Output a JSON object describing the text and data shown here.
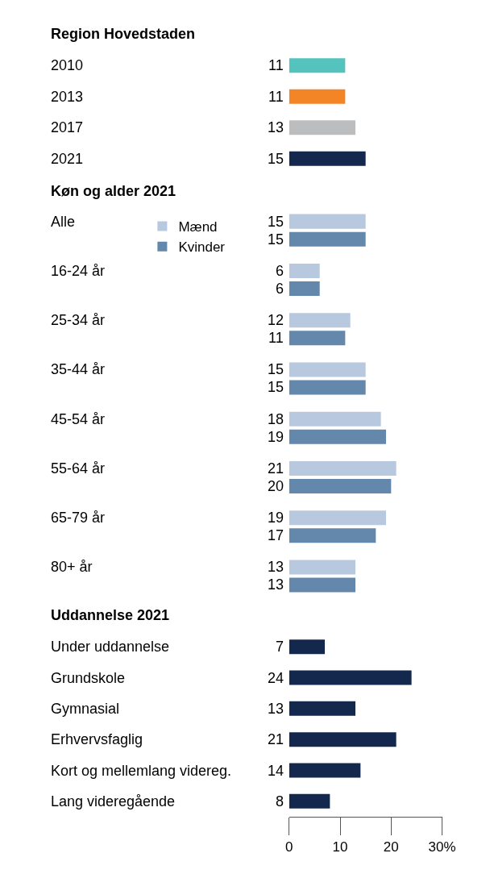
{
  "chart_data": [
    {
      "type": "bar",
      "orientation": "horizontal",
      "title": "Region Hovedstaden",
      "categories": [
        "2010",
        "2013",
        "2017",
        "2021"
      ],
      "values": [
        11,
        11,
        13,
        15
      ],
      "colors": [
        "#55c3bd",
        "#f48527",
        "#bbbdbe",
        "#13284c"
      ],
      "tick_labels": "y",
      "data_labels": true
    },
    {
      "type": "bar",
      "orientation": "horizontal",
      "title": "Køn og alder 2021",
      "categories": [
        "Alle",
        "16-24 år",
        "25-34 år",
        "35-44 år",
        "45-54 år",
        "55-64 år",
        "65-79 år",
        "80+ år"
      ],
      "series": [
        {
          "name": "Mænd",
          "color": "#b8c8de",
          "values": [
            15,
            6,
            12,
            15,
            18,
            21,
            19,
            13
          ]
        },
        {
          "name": "Kvinder",
          "color": "#6487ac",
          "values": [
            15,
            6,
            11,
            15,
            19,
            20,
            17,
            13
          ]
        }
      ],
      "legend": "top left",
      "tick_labels": "y",
      "data_labels": true
    },
    {
      "type": "bar",
      "orientation": "horizontal",
      "title": "Uddannelse 2021",
      "categories": [
        "Under uddannelse",
        "Grundskole",
        "Gymnasial",
        "Erhvervsfaglig",
        "Kort og mellemlang videreg.",
        "Lang videregående"
      ],
      "values": [
        7,
        24,
        13,
        21,
        14,
        8
      ],
      "color": "#13284c",
      "xlim": [
        0,
        30
      ],
      "xticks": [
        0,
        10,
        20,
        {
          "value": 30,
          "label": "30%"
        }
      ],
      "data_labels": true
    }
  ]
}
